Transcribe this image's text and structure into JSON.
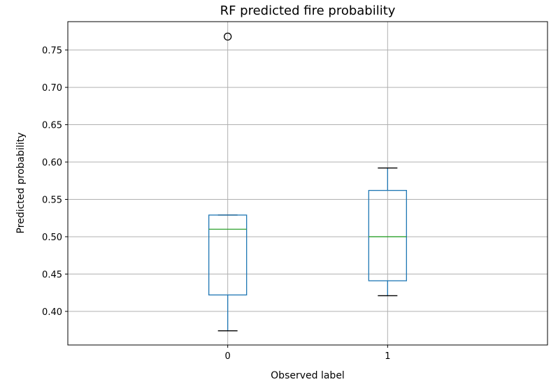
{
  "chart_data": {
    "type": "box",
    "title": "RF predicted fire probability",
    "xlabel": "Observed label",
    "ylabel": "Predicted probability",
    "categories": [
      "0",
      "1"
    ],
    "ylim": [
      0.355,
      0.788
    ],
    "yticks": [
      0.4,
      0.45,
      0.5,
      0.55,
      0.6,
      0.65,
      0.7,
      0.75
    ],
    "ytick_labels": [
      "0.40",
      "0.45",
      "0.50",
      "0.55",
      "0.60",
      "0.65",
      "0.70",
      "0.75"
    ],
    "grid": true,
    "boxes": [
      {
        "category": "0",
        "whisker_low": 0.374,
        "q1": 0.422,
        "median": 0.51,
        "q3": 0.529,
        "whisker_high": 0.529,
        "outliers": [
          0.768
        ]
      },
      {
        "category": "1",
        "whisker_low": 0.421,
        "q1": 0.441,
        "median": 0.5,
        "q3": 0.562,
        "whisker_high": 0.592,
        "outliers": []
      }
    ],
    "colors": {
      "box": "#1f77b4",
      "median": "#2ca02c",
      "whisker_cap": "#000000",
      "outlier": "#000000",
      "grid": "#b0b0b0"
    }
  }
}
